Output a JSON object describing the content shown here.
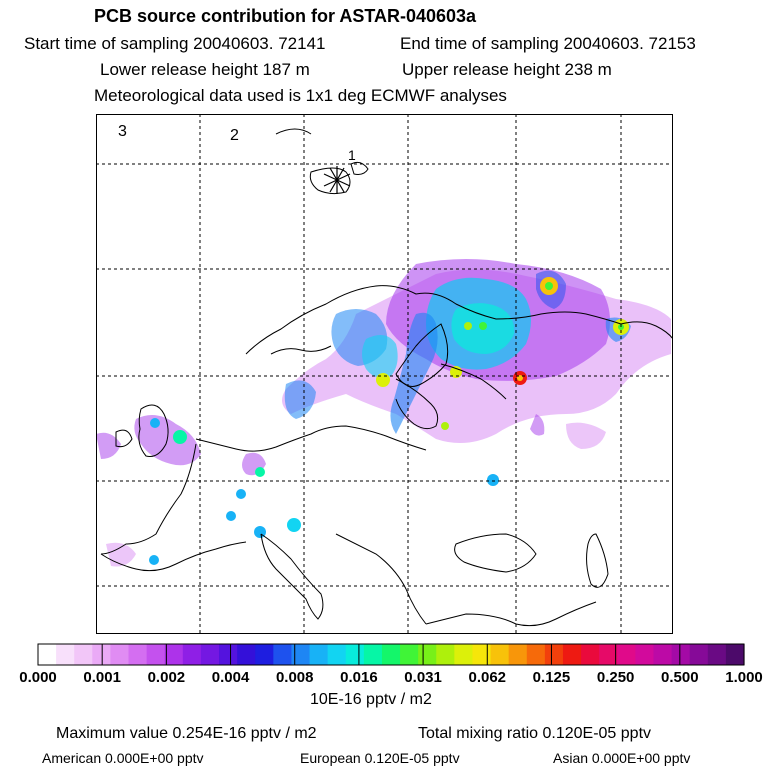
{
  "header": {
    "title": "PCB source contribution for ASTAR-040603a",
    "start_time": "Start time of sampling 20040603. 72141",
    "end_time": "End time of sampling 20040603. 72153",
    "lower_height": "Lower release height  187 m",
    "upper_height": "Upper release height  238 m",
    "met_data": "Meteorological data used is 1x1 deg ECMWF analyses"
  },
  "map": {
    "corner_labels": [
      "3",
      "2",
      "1"
    ],
    "colors": {
      "frame": "#000000",
      "coast": "#000000",
      "grid": "#000000"
    }
  },
  "colorbar": {
    "colors": [
      "#ffffff",
      "#f8e0fb",
      "#f2c6f8",
      "#eaaaf6",
      "#e08cf3",
      "#d46ef1",
      "#c451ee",
      "#ad33ea",
      "#8f1fe6",
      "#7418e2",
      "#5413de",
      "#3410d9",
      "#1e1ee0",
      "#1e52ee",
      "#1e86f4",
      "#18b2f6",
      "#12d4f2",
      "#08ecdc",
      "#06f6a6",
      "#14f66a",
      "#40f437",
      "#78f019",
      "#aef00c",
      "#dcf00a",
      "#f6e60a",
      "#f8c20a",
      "#f8960a",
      "#f66a0a",
      "#f2400c",
      "#ee1a12",
      "#ea0a3c",
      "#e60a68",
      "#e00a8a",
      "#d20a9c",
      "#bc0aa6",
      "#a40aa6",
      "#860a98",
      "#6a0a84",
      "#4c0a6a"
    ],
    "tick_labels": [
      "0.000",
      "0.001",
      "0.002",
      "0.004",
      "0.008",
      "0.016",
      "0.031",
      "0.062",
      "0.125",
      "0.250",
      "0.500",
      "1.000"
    ],
    "units": "10E-16 pptv / m2"
  },
  "footer": {
    "max_value": "Maximum value  0.254E-16 pptv / m2",
    "total_mixing": "Total mixing ratio  0.120E-05 pptv",
    "american": "American  0.000E+00 pptv",
    "european": "European  0.120E-05 pptv",
    "asian": "Asian  0.000E+00 pptv"
  }
}
